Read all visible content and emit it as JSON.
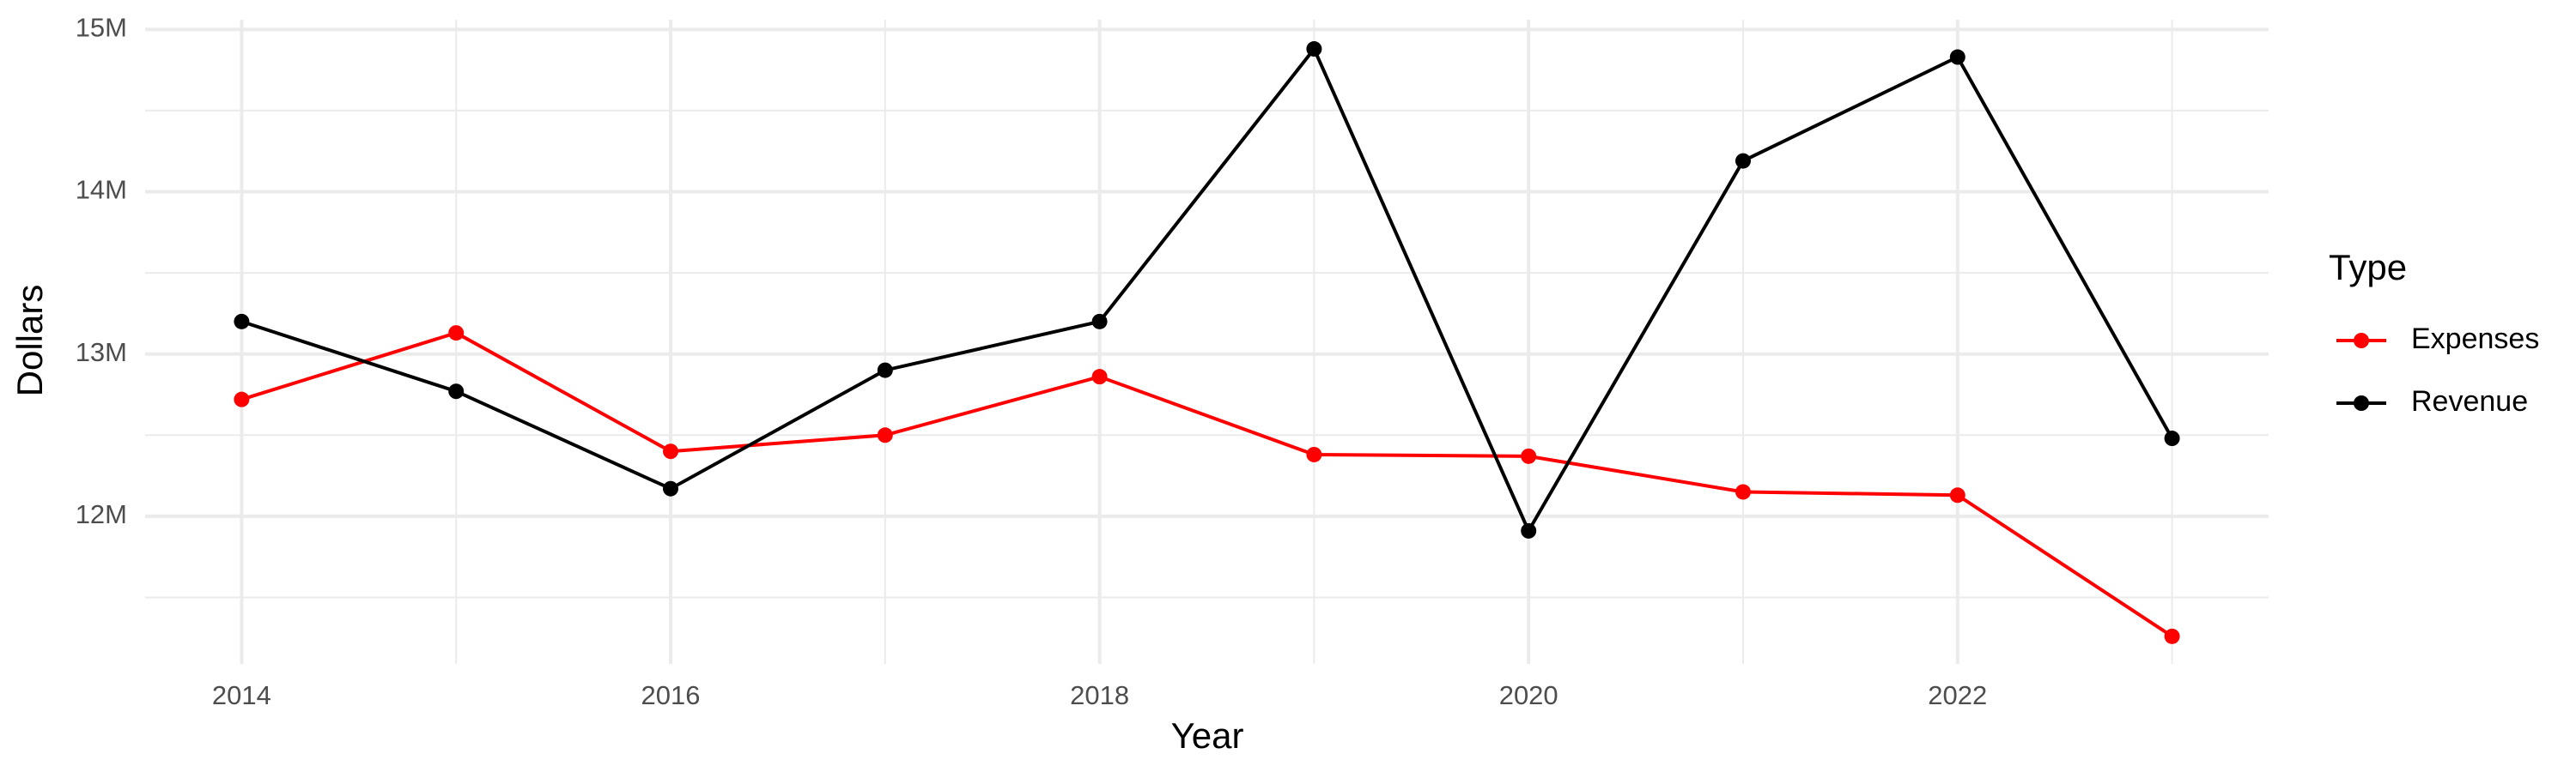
{
  "chart_data": {
    "type": "line",
    "x_label": "Year",
    "y_label": "Dollars",
    "legend_title": "Type",
    "x": [
      2014,
      2015,
      2016,
      2017,
      2018,
      2019,
      2020,
      2021,
      2022,
      2023
    ],
    "series": [
      {
        "name": "Expenses",
        "color": "#ff0000",
        "values": [
          12720000,
          13130000,
          12400000,
          12500000,
          12860000,
          12380000,
          12370000,
          12150000,
          12130000,
          11260000
        ]
      },
      {
        "name": "Revenue",
        "color": "#000000",
        "values": [
          13200000,
          12770000,
          12170000,
          12900000,
          13200000,
          14880000,
          11910000,
          14190000,
          14830000,
          12480000
        ]
      }
    ],
    "xlim": [
      2013.55,
      2023.45
    ],
    "xticks": [
      2014,
      2016,
      2018,
      2020,
      2022
    ],
    "x_minor_grid": [
      2015,
      2017,
      2019,
      2021,
      2023
    ],
    "ylim": [
      11090000,
      15060000
    ],
    "yticks": [
      {
        "value": 12000000,
        "label": "12M"
      },
      {
        "value": 13000000,
        "label": "13M"
      },
      {
        "value": 14000000,
        "label": "14M"
      },
      {
        "value": 15000000,
        "label": "15M"
      }
    ],
    "y_minor_grid": [
      11500000,
      12500000,
      13500000,
      14500000
    ],
    "grid": true,
    "legend_position": "right"
  }
}
